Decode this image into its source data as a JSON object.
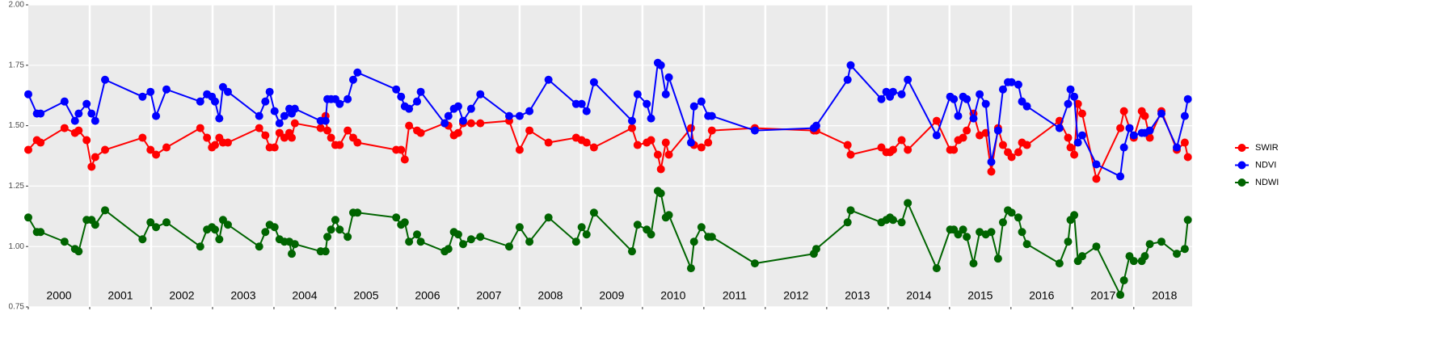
{
  "chart_data": {
    "type": "line",
    "x": [
      2000.0,
      2000.14,
      2000.2,
      2000.59,
      2000.76,
      2000.82,
      2000.95,
      2001.03,
      2001.09,
      2001.25,
      2001.86,
      2001.99,
      2002.08,
      2002.25,
      2002.8,
      2002.91,
      2002.99,
      2003.04,
      2003.11,
      2003.17,
      2003.25,
      2003.76,
      2003.86,
      2003.93,
      2004.01,
      2004.09,
      2004.17,
      2004.25,
      2004.29,
      2004.34,
      2004.76,
      2004.84,
      2004.87,
      2004.93,
      2005.0,
      2005.07,
      2005.2,
      2005.29,
      2005.36,
      2005.99,
      2006.07,
      2006.13,
      2006.2,
      2006.33,
      2006.39,
      2006.78,
      2006.84,
      2006.93,
      2007.0,
      2007.08,
      2007.21,
      2007.36,
      2007.83,
      2008.0,
      2008.16,
      2008.47,
      2008.92,
      2009.01,
      2009.09,
      2009.21,
      2009.83,
      2009.92,
      2010.07,
      2010.14,
      2010.25,
      2010.3,
      2010.38,
      2010.43,
      2010.79,
      2010.84,
      2010.96,
      2011.07,
      2011.13,
      2011.83,
      2012.79,
      2012.83,
      2013.34,
      2013.39,
      2013.89,
      2013.97,
      2014.03,
      2014.08,
      2014.22,
      2014.32,
      2014.79,
      2015.01,
      2015.07,
      2015.14,
      2015.22,
      2015.28,
      2015.39,
      2015.49,
      2015.59,
      2015.68,
      2015.79,
      2015.87,
      2015.95,
      2016.01,
      2016.12,
      2016.18,
      2016.26,
      2016.79,
      2016.93,
      2016.97,
      2017.03,
      2017.09,
      2017.16,
      2017.39,
      2017.78,
      2017.84,
      2017.93,
      2018.0,
      2018.13,
      2018.18,
      2018.26,
      2018.45,
      2018.7,
      2018.83,
      2018.88
    ],
    "series": [
      {
        "name": "SWIR",
        "color": "#ff0000",
        "values": [
          1.4,
          1.44,
          1.43,
          1.49,
          1.47,
          1.48,
          1.44,
          1.33,
          1.37,
          1.4,
          1.45,
          1.4,
          1.38,
          1.41,
          1.49,
          1.45,
          1.41,
          1.42,
          1.45,
          1.43,
          1.43,
          1.49,
          1.46,
          1.41,
          1.41,
          1.47,
          1.45,
          1.47,
          1.45,
          1.51,
          1.49,
          1.54,
          1.48,
          1.45,
          1.42,
          1.42,
          1.48,
          1.45,
          1.43,
          1.4,
          1.4,
          1.36,
          1.5,
          1.48,
          1.47,
          1.51,
          1.5,
          1.46,
          1.47,
          1.51,
          1.51,
          1.51,
          1.52,
          1.4,
          1.48,
          1.43,
          1.45,
          1.44,
          1.43,
          1.41,
          1.49,
          1.42,
          1.43,
          1.44,
          1.38,
          1.32,
          1.43,
          1.38,
          1.49,
          1.42,
          1.41,
          1.43,
          1.48,
          1.49,
          1.48,
          1.48,
          1.42,
          1.38,
          1.41,
          1.39,
          1.39,
          1.4,
          1.44,
          1.4,
          1.52,
          1.4,
          1.4,
          1.44,
          1.45,
          1.48,
          1.55,
          1.46,
          1.47,
          1.31,
          1.49,
          1.42,
          1.39,
          1.37,
          1.39,
          1.43,
          1.42,
          1.52,
          1.45,
          1.41,
          1.38,
          1.59,
          1.55,
          1.28,
          1.49,
          1.56,
          1.49,
          1.45,
          1.56,
          1.54,
          1.45,
          1.56,
          1.4,
          1.43,
          1.37
        ]
      },
      {
        "name": "NDVI",
        "color": "#0000ff",
        "values": [
          1.63,
          1.55,
          1.55,
          1.6,
          1.52,
          1.55,
          1.59,
          1.55,
          1.52,
          1.69,
          1.62,
          1.64,
          1.54,
          1.65,
          1.6,
          1.63,
          1.62,
          1.6,
          1.53,
          1.66,
          1.64,
          1.54,
          1.6,
          1.64,
          1.56,
          1.51,
          1.54,
          1.57,
          1.55,
          1.57,
          1.52,
          1.52,
          1.61,
          1.61,
          1.61,
          1.59,
          1.61,
          1.69,
          1.72,
          1.65,
          1.62,
          1.58,
          1.57,
          1.6,
          1.64,
          1.51,
          1.54,
          1.57,
          1.58,
          1.52,
          1.57,
          1.63,
          1.54,
          1.54,
          1.56,
          1.69,
          1.59,
          1.59,
          1.56,
          1.68,
          1.52,
          1.63,
          1.59,
          1.53,
          1.76,
          1.75,
          1.63,
          1.7,
          1.43,
          1.58,
          1.6,
          1.54,
          1.54,
          1.48,
          1.49,
          1.5,
          1.69,
          1.75,
          1.61,
          1.64,
          1.62,
          1.64,
          1.63,
          1.69,
          1.46,
          1.62,
          1.61,
          1.54,
          1.62,
          1.61,
          1.53,
          1.63,
          1.59,
          1.35,
          1.48,
          1.65,
          1.68,
          1.68,
          1.67,
          1.6,
          1.58,
          1.49,
          1.59,
          1.65,
          1.62,
          1.43,
          1.46,
          1.34,
          1.29,
          1.41,
          1.49,
          1.46,
          1.47,
          1.47,
          1.48,
          1.55,
          1.41,
          1.54,
          1.61
        ]
      },
      {
        "name": "NDWI",
        "color": "#006400",
        "values": [
          1.12,
          1.06,
          1.06,
          1.02,
          0.99,
          0.98,
          1.11,
          1.11,
          1.09,
          1.15,
          1.03,
          1.1,
          1.08,
          1.1,
          1.0,
          1.07,
          1.08,
          1.07,
          1.03,
          1.11,
          1.09,
          1.0,
          1.06,
          1.09,
          1.08,
          1.03,
          1.02,
          1.02,
          0.97,
          1.01,
          0.98,
          0.98,
          1.04,
          1.07,
          1.11,
          1.07,
          1.04,
          1.14,
          1.14,
          1.12,
          1.09,
          1.1,
          1.02,
          1.05,
          1.02,
          0.98,
          0.99,
          1.06,
          1.05,
          1.01,
          1.03,
          1.04,
          1.0,
          1.08,
          1.02,
          1.12,
          1.02,
          1.08,
          1.05,
          1.14,
          0.98,
          1.09,
          1.07,
          1.05,
          1.23,
          1.22,
          1.12,
          1.13,
          0.91,
          1.02,
          1.08,
          1.04,
          1.04,
          0.93,
          0.97,
          0.99,
          1.1,
          1.15,
          1.1,
          1.11,
          1.12,
          1.11,
          1.1,
          1.18,
          0.91,
          1.07,
          1.07,
          1.05,
          1.07,
          1.04,
          0.93,
          1.06,
          1.05,
          1.06,
          0.95,
          1.1,
          1.15,
          1.14,
          1.12,
          1.06,
          1.01,
          0.93,
          1.02,
          1.11,
          1.13,
          0.94,
          0.96,
          1.0,
          0.8,
          0.86,
          0.96,
          0.94,
          0.94,
          0.96,
          1.01,
          1.02,
          0.97,
          0.99,
          1.11
        ]
      }
    ],
    "xlim": [
      2000,
      2018.95
    ],
    "xticks": [
      2000,
      2001,
      2002,
      2003,
      2004,
      2005,
      2006,
      2007,
      2008,
      2009,
      2010,
      2011,
      2012,
      2013,
      2014,
      2015,
      2016,
      2017,
      2018
    ],
    "x_labels": [
      2000,
      2001,
      2002,
      2003,
      2004,
      2005,
      2006,
      2007,
      2008,
      2009,
      2010,
      2011,
      2012,
      2013,
      2014,
      2015,
      2016,
      2017,
      2018
    ],
    "ylim": [
      0.75,
      2.0
    ],
    "yticks": [
      {
        "value": 0.75,
        "label": "0.75"
      },
      {
        "value": 1.0,
        "label": "1.00"
      },
      {
        "value": 1.25,
        "label": "1.25"
      },
      {
        "value": 1.5,
        "label": "1.50"
      },
      {
        "value": 1.75,
        "label": "1.75"
      },
      {
        "value": 2.0,
        "label": "2.00"
      }
    ],
    "grid": true,
    "legend": "right"
  }
}
